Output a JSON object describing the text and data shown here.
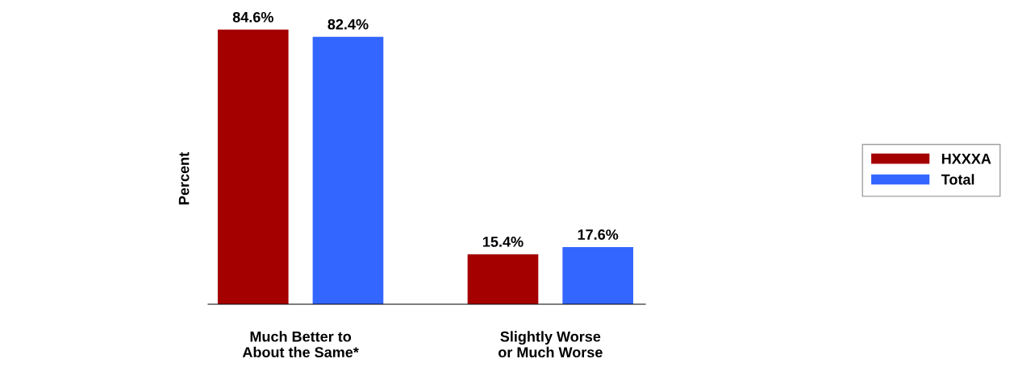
{
  "chart_data": {
    "type": "bar",
    "ylabel": "Percent",
    "categories": [
      "Much Better to\nAbout the Same*",
      "Slightly Worse\nor Much Worse"
    ],
    "series": [
      {
        "name": "HXXXA",
        "color": "#a50000",
        "values": [
          84.6,
          15.4
        ],
        "value_labels": [
          "84.6%",
          "15.4%"
        ]
      },
      {
        "name": "Total",
        "color": "#3366ff",
        "values": [
          82.4,
          17.6
        ],
        "value_labels": [
          "82.4%",
          "17.6%"
        ]
      }
    ],
    "legend": "right",
    "grid": false
  }
}
